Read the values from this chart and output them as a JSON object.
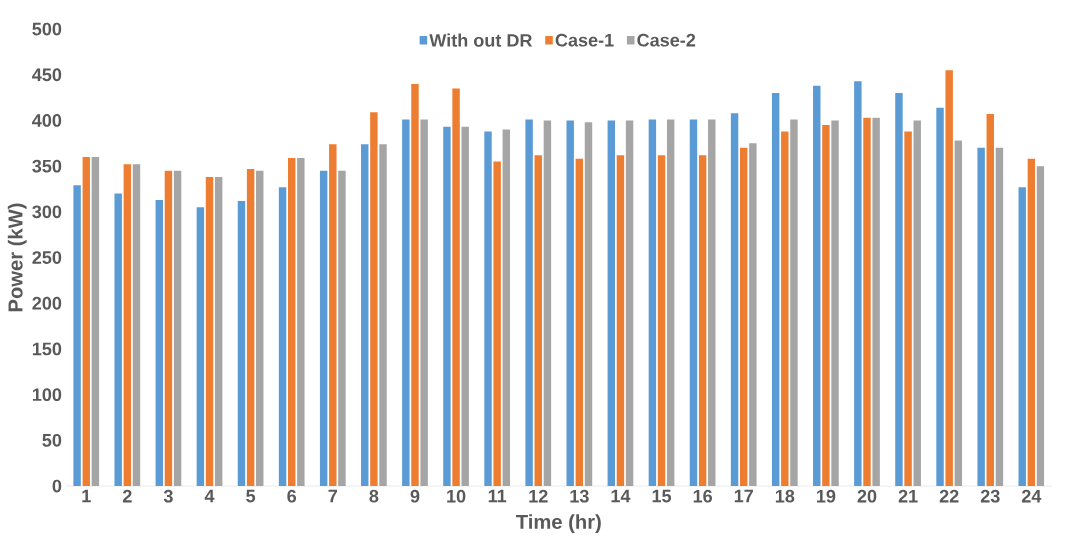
{
  "chart_data": {
    "type": "bar",
    "xlabel": "Time (hr)",
    "ylabel": "Power (kW)",
    "categories": [
      "1",
      "2",
      "3",
      "4",
      "5",
      "6",
      "7",
      "8",
      "9",
      "10",
      "11",
      "12",
      "13",
      "14",
      "15",
      "16",
      "17",
      "18",
      "19",
      "20",
      "21",
      "22",
      "23",
      "24"
    ],
    "series": [
      {
        "name": "With out DR",
        "color": "#5b9bd5",
        "values": [
          329,
          320,
          313,
          305,
          312,
          327,
          345,
          374,
          401,
          393,
          388,
          401,
          400,
          400,
          401,
          401,
          408,
          430,
          438,
          443,
          430,
          414,
          370,
          327
        ]
      },
      {
        "name": "Case-1",
        "color": "#ed7d31",
        "values": [
          360,
          352,
          345,
          338,
          347,
          359,
          374,
          409,
          440,
          435,
          355,
          362,
          358,
          362,
          362,
          362,
          370,
          388,
          395,
          403,
          388,
          455,
          407,
          358
        ]
      },
      {
        "name": "Case-2",
        "color": "#a5a5a5",
        "values": [
          360,
          352,
          345,
          338,
          345,
          359,
          345,
          374,
          401,
          393,
          390,
          400,
          398,
          400,
          401,
          401,
          375,
          401,
          400,
          403,
          400,
          378,
          370,
          350
        ]
      }
    ],
    "ylim": [
      0,
      500
    ],
    "yticks": [
      0,
      50,
      100,
      150,
      200,
      250,
      300,
      350,
      400,
      450,
      500
    ],
    "legend": "top"
  }
}
